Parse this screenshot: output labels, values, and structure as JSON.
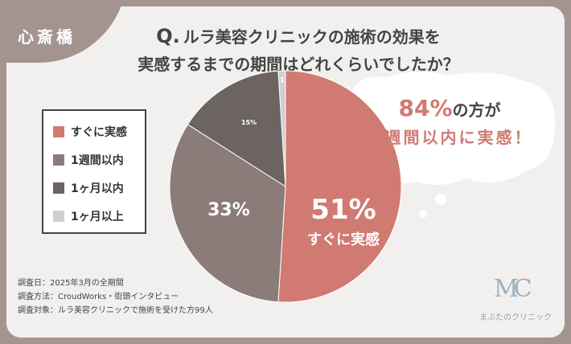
{
  "badge": "心斎橋",
  "title": {
    "q": "Q.",
    "line1": "ルラ美容クリニックの施術の効果を",
    "line2": "実感するまでの期間はどれくらいでしたか？"
  },
  "callout": {
    "percent": "84%",
    "suffix": "の方が",
    "line2": "１週間以内に実感！"
  },
  "center_label": {
    "value": "51%",
    "text": "すぐに実感"
  },
  "survey": [
    "調査日：2025年3月の全期間",
    "調査方法：CroudWorks・街頭インタビュー",
    "調査対象：ルラ美容クリニックで施術を受けた方99人"
  ],
  "logo": {
    "mark": "MC",
    "text": "まぶたのクリニック"
  },
  "chart_data": {
    "type": "pie",
    "title": "ルラ美容クリニックの施術の効果を実感するまでの期間はどれくらいでしたか？",
    "categories": [
      "すぐに実感",
      "1週間以内",
      "1ヶ月以内",
      "1ヶ月以上"
    ],
    "values": [
      51,
      33,
      15,
      1
    ],
    "labels": [
      "51%",
      "33%",
      "15%",
      "1"
    ],
    "colors": [
      "#d07a72",
      "#8c7c79",
      "#6b6461",
      "#cfcfcf"
    ],
    "legend_position": "left"
  }
}
